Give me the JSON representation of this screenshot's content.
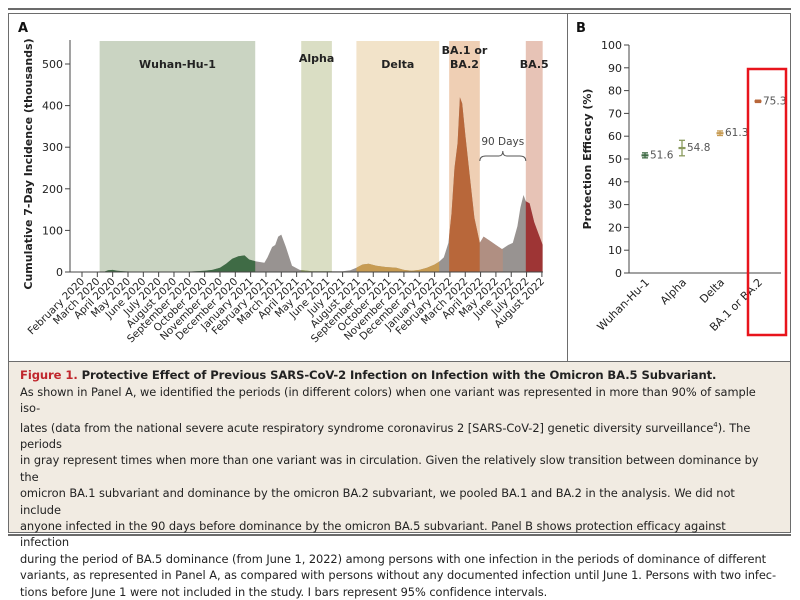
{
  "figure": {
    "label": "Figure 1.",
    "title": "Protective Effect of Previous SARS-CoV-2 Infection on Infection with the Omicron BA.5 Subvariant.",
    "caption_lines": [
      "As shown in Panel A, we identified the periods (in different colors) when one variant was represented in more than 90% of sample iso-",
      "lates (data from the national severe acute respiratory syndrome coronavirus 2 [SARS-CoV-2] genetic diversity surveillance",
      "in gray represent times when more than one variant was in circulation. Given the relatively slow transition between dominance by the",
      "omicron BA.1 subvariant and dominance by the omicron BA.2 subvariant, we pooled BA.1 and BA.2 in the analysis. We did not include",
      "anyone infected in the 90 days before dominance by the omicron BA.5 subvariant. Panel B shows protection efficacy against infection",
      "during the period of BA.5 dominance (from June 1, 2022) among persons with one infection in the periods of dominance of different",
      "variants, as represented in Panel A, as compared with persons without any documented infection until June 1. Persons with two infec-",
      "tions before June 1 were not included in the study. I bars represent 95% confidence intervals."
    ],
    "caption_superscript": "4",
    "caption_line2_tail": "). The periods"
  },
  "chart_data": [
    {
      "panel": "A",
      "type": "area",
      "title": "",
      "xlabel": "",
      "ylabel": "Cumulative 7-Day Incidence (thousands)",
      "ylim": [
        0,
        560
      ],
      "yticks": [
        0,
        100,
        200,
        300,
        400,
        500
      ],
      "grid": false,
      "x_ticks": [
        "February 2020",
        "March 2020",
        "April 2020",
        "May 2020",
        "June 2020",
        "July 2020",
        "August 2020",
        "September 2020",
        "October 2020",
        "November 2020",
        "December 2020",
        "January 2021",
        "February 2021",
        "March 2021",
        "April 2021",
        "May 2021",
        "June 2021",
        "July 2021",
        "August 2021",
        "September 2021",
        "October 2021",
        "November 2021",
        "December 2021",
        "January 2022",
        "February 2022",
        "March 2022",
        "April 2022",
        "May 2022",
        "June 2022",
        "July 2022",
        "August 2022"
      ],
      "variant_periods": [
        {
          "name": "Wuhan-Hu-1",
          "label": "Wuhan-Hu-1",
          "start": 1.15,
          "end": 11.3,
          "band_color": "#cad4c2",
          "fill_color": "#3f6b45"
        },
        {
          "name": "Alpha",
          "label": "Alpha",
          "start": 14.3,
          "end": 16.3,
          "band_color": "#dadec4",
          "fill_color": "#8a9a5e"
        },
        {
          "name": "Delta",
          "label": "Delta",
          "start": 17.9,
          "end": 23.3,
          "band_color": "#f2e3c9",
          "fill_color": "#c79b52"
        },
        {
          "name": "BA.1 or BA.2",
          "label": "BA.1 or\nBA.2",
          "start": 23.95,
          "end": 25.95,
          "band_color": "#efcfb4",
          "fill_color": "#b8673a"
        },
        {
          "name": "BA.5",
          "label": "BA.5",
          "start": 28.95,
          "end": 30.05,
          "band_color": "#e7c3b6",
          "fill_color": "#9e3535"
        }
      ],
      "excluded_period": {
        "name": "90 Days",
        "start": 25.95,
        "end": 28.95,
        "fill_color": "#b08f82"
      },
      "mixed_color": "#989391",
      "annotation": "90 Days",
      "incidence_series": {
        "x_month_index": [
          0,
          1.4,
          1.7,
          2.0,
          2.3,
          2.7,
          3.2,
          4,
          5,
          6,
          7,
          8,
          8.5,
          9.0,
          9.4,
          9.8,
          10.2,
          10.6,
          10.9,
          11.3,
          11.6,
          11.9,
          12.1,
          12.4,
          12.6,
          12.8,
          13.0,
          13.3,
          13.7,
          14.2,
          15,
          16,
          17,
          17.5,
          17.9,
          18.3,
          18.7,
          19.2,
          19.8,
          20.5,
          21,
          21.5,
          22,
          22.5,
          23.0,
          23.3,
          23.6,
          23.9,
          24.1,
          24.3,
          24.5,
          24.65,
          24.8,
          25.0,
          25.3,
          25.6,
          25.95,
          26.2,
          26.6,
          27.0,
          27.4,
          27.8,
          28.1,
          28.4,
          28.6,
          28.8,
          28.95,
          29.2,
          29.5,
          29.8,
          30.05
        ],
        "y_thousands": [
          0,
          0,
          4,
          5,
          3,
          2,
          1,
          1,
          1,
          1,
          1,
          3,
          5,
          10,
          20,
          32,
          38,
          40,
          30,
          26,
          24,
          22,
          35,
          60,
          65,
          85,
          90,
          60,
          15,
          5,
          2,
          2,
          2,
          4,
          10,
          18,
          20,
          15,
          12,
          10,
          5,
          3,
          5,
          10,
          18,
          25,
          35,
          70,
          140,
          250,
          310,
          420,
          405,
          330,
          230,
          130,
          70,
          85,
          75,
          65,
          55,
          65,
          70,
          110,
          155,
          185,
          170,
          165,
          120,
          90,
          65
        ]
      }
    },
    {
      "panel": "B",
      "type": "scatter",
      "title": "",
      "xlabel": "",
      "ylabel": "Protection Efficacy (%)",
      "ylim": [
        0,
        100
      ],
      "yticks": [
        0,
        10,
        20,
        30,
        40,
        50,
        60,
        70,
        80,
        90,
        100
      ],
      "grid": false,
      "categories": [
        "Wuhan-Hu-1",
        "Alpha",
        "Delta",
        "BA.1 or BA.2"
      ],
      "values": [
        51.6,
        54.8,
        61.3,
        75.3
      ],
      "ci_lower": [
        50.5,
        51.4,
        60.3,
        74.8
      ],
      "ci_upper": [
        52.7,
        58.2,
        62.3,
        75.8
      ],
      "colors": [
        "#3f6b45",
        "#8a9a5e",
        "#c79b52",
        "#b8673a"
      ],
      "value_labels": [
        "51.6",
        "54.8",
        "61.3",
        "75.3"
      ],
      "highlight": {
        "category": "BA.1 or BA.2",
        "color": "#e8141c"
      }
    }
  ],
  "panels": {
    "a_label": "A",
    "b_label": "B"
  }
}
